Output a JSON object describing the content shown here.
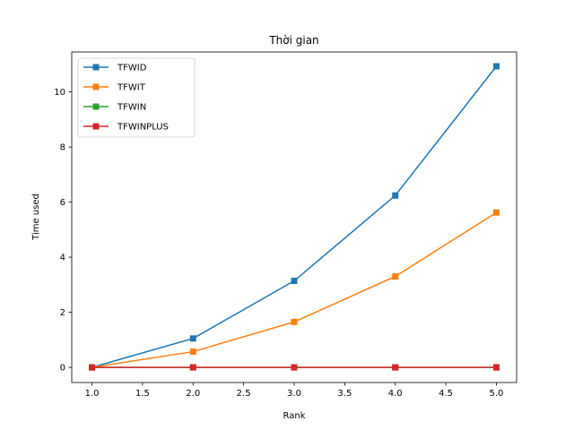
{
  "chart_data": {
    "type": "line",
    "title": "Thời gian",
    "xlabel": "Rank",
    "ylabel": "Time used",
    "x": [
      1.0,
      2.0,
      3.0,
      4.0,
      5.0
    ],
    "xlim": [
      0.8,
      5.2
    ],
    "ylim": [
      -0.55,
      11.45
    ],
    "xticks": [
      1.0,
      1.5,
      2.0,
      2.5,
      3.0,
      3.5,
      4.0,
      4.5,
      5.0
    ],
    "xtick_labels": [
      "1.0",
      "1.5",
      "2.0",
      "2.5",
      "3.0",
      "3.5",
      "4.0",
      "4.5",
      "5.0"
    ],
    "yticks": [
      0,
      2,
      4,
      6,
      8,
      10
    ],
    "ytick_labels": [
      "0",
      "2",
      "4",
      "6",
      "8",
      "10"
    ],
    "grid": false,
    "legend_position": "upper left",
    "marker": "square",
    "series": [
      {
        "name": "TFWID",
        "color": "#1f77b4",
        "values": [
          0.0,
          1.05,
          3.14,
          6.24,
          10.93
        ]
      },
      {
        "name": "TFWIT",
        "color": "#ff7f0e",
        "values": [
          0.0,
          0.57,
          1.65,
          3.3,
          5.62
        ]
      },
      {
        "name": "TFWIN",
        "color": "#2ca02c",
        "values": [
          0.0,
          0.0,
          0.0,
          0.0,
          0.0
        ]
      },
      {
        "name": "TFWINPLUS",
        "color": "#d62728",
        "values": [
          0.0,
          0.0,
          0.0,
          0.0,
          0.0
        ]
      }
    ]
  }
}
